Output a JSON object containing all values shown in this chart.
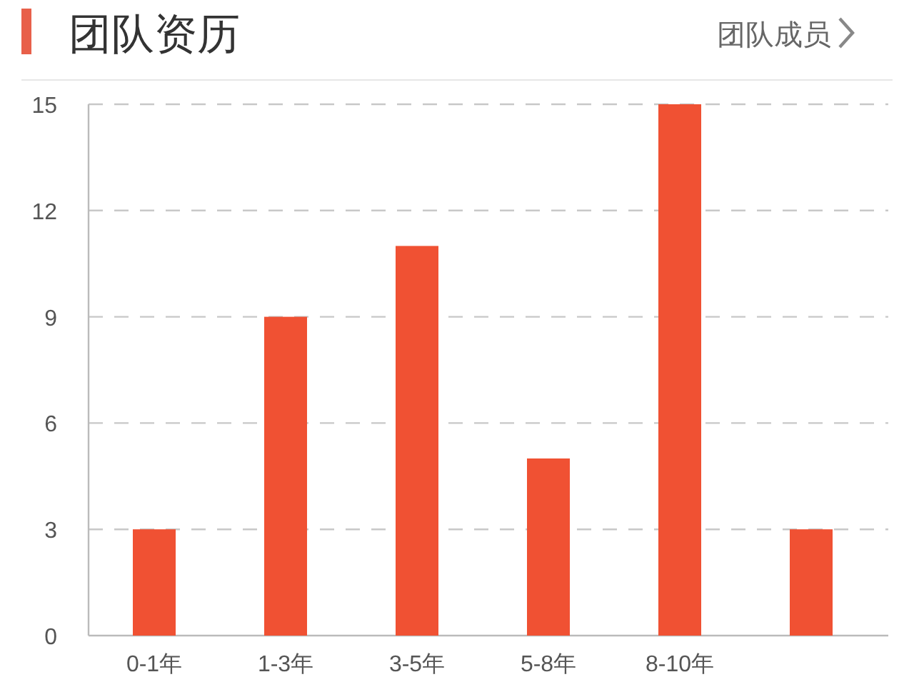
{
  "chart_data": {
    "type": "bar",
    "title": "团队资历",
    "subtitle": "团队成员",
    "categories": [
      "0-1年",
      "1-3年",
      "3-5年",
      "5-8年",
      "8-10年",
      null
    ],
    "values": [
      3,
      9,
      11,
      5,
      15,
      3
    ],
    "color": "#f05133",
    "ylim": [
      0,
      15
    ],
    "yticks": [
      0,
      3,
      6,
      9,
      12,
      15
    ],
    "grid": "y"
  }
}
